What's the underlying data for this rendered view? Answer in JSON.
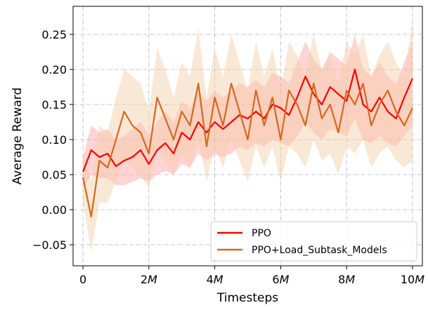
{
  "chart_data": {
    "type": "line",
    "xlabel": "Timesteps",
    "ylabel": "Average Reward",
    "xlim": [
      -0.3,
      10.3
    ],
    "ylim": [
      -0.08,
      0.29
    ],
    "x_unit": "M",
    "x_ticks": [
      0,
      2,
      4,
      6,
      8,
      10
    ],
    "x_tick_labels": [
      "0",
      "2",
      "4",
      "6",
      "8",
      "10"
    ],
    "y_ticks": [
      -0.05,
      0.0,
      0.05,
      0.1,
      0.15,
      0.2,
      0.25
    ],
    "y_tick_labels": [
      "−0.05",
      "0.00",
      "0.05",
      "0.10",
      "0.15",
      "0.20",
      "0.25"
    ],
    "grid": true,
    "legend_position": "bottom-right",
    "series": [
      {
        "name": "PPO",
        "color": "#ff0000",
        "band_color": "#ff9f9f",
        "x": [
          0,
          0.25,
          0.5,
          0.75,
          1,
          1.25,
          1.5,
          1.75,
          2,
          2.25,
          2.5,
          2.75,
          3,
          3.25,
          3.5,
          3.75,
          4,
          4.25,
          4.5,
          4.75,
          5,
          5.25,
          5.5,
          5.75,
          6,
          6.25,
          6.5,
          6.75,
          7,
          7.25,
          7.5,
          7.75,
          8,
          8.25,
          8.5,
          8.75,
          9,
          9.25,
          9.5,
          9.75,
          10
        ],
        "y": [
          0.054,
          0.085,
          0.075,
          0.08,
          0.062,
          0.07,
          0.075,
          0.085,
          0.065,
          0.085,
          0.095,
          0.08,
          0.11,
          0.1,
          0.125,
          0.11,
          0.125,
          0.115,
          0.125,
          0.135,
          0.13,
          0.14,
          0.13,
          0.15,
          0.145,
          0.135,
          0.16,
          0.19,
          0.165,
          0.15,
          0.175,
          0.165,
          0.155,
          0.2,
          0.15,
          0.14,
          0.16,
          0.14,
          0.13,
          0.16,
          0.187
        ],
        "y_low": [
          0.03,
          0.05,
          0.045,
          0.045,
          0.035,
          0.035,
          0.04,
          0.045,
          0.04,
          0.05,
          0.055,
          0.05,
          0.065,
          0.06,
          0.08,
          0.07,
          0.08,
          0.075,
          0.08,
          0.09,
          0.085,
          0.095,
          0.09,
          0.1,
          0.095,
          0.09,
          0.105,
          0.125,
          0.11,
          0.1,
          0.115,
          0.11,
          0.105,
          0.13,
          0.1,
          0.095,
          0.105,
          0.095,
          0.09,
          0.105,
          0.12
        ],
        "y_high": [
          0.075,
          0.12,
          0.11,
          0.115,
          0.1,
          0.105,
          0.115,
          0.125,
          0.105,
          0.125,
          0.14,
          0.125,
          0.155,
          0.145,
          0.17,
          0.155,
          0.17,
          0.16,
          0.17,
          0.18,
          0.175,
          0.185,
          0.175,
          0.195,
          0.19,
          0.18,
          0.21,
          0.24,
          0.215,
          0.2,
          0.225,
          0.215,
          0.205,
          0.25,
          0.2,
          0.19,
          0.21,
          0.19,
          0.18,
          0.21,
          0.24
        ]
      },
      {
        "name": "PPO+Load_Subtask_Models",
        "color": "#d2691e",
        "band_color": "#f5cba7",
        "x": [
          0,
          0.25,
          0.5,
          0.75,
          1,
          1.25,
          1.5,
          1.75,
          2,
          2.25,
          2.5,
          2.75,
          3,
          3.25,
          3.5,
          3.75,
          4,
          4.25,
          4.5,
          4.75,
          5,
          5.25,
          5.5,
          5.75,
          6,
          6.25,
          6.5,
          6.75,
          7,
          7.25,
          7.5,
          7.75,
          8,
          8.25,
          8.5,
          8.75,
          9,
          9.25,
          9.5,
          9.75,
          10
        ],
        "y": [
          0.046,
          -0.01,
          0.07,
          0.06,
          0.1,
          0.14,
          0.12,
          0.11,
          0.08,
          0.16,
          0.13,
          0.1,
          0.14,
          0.12,
          0.18,
          0.09,
          0.16,
          0.12,
          0.18,
          0.14,
          0.1,
          0.17,
          0.12,
          0.16,
          0.1,
          0.17,
          0.15,
          0.12,
          0.18,
          0.13,
          0.15,
          0.11,
          0.17,
          0.15,
          0.18,
          0.12,
          0.15,
          0.17,
          0.14,
          0.12,
          0.145
        ],
        "y_low": [
          0.01,
          -0.06,
          0.01,
          0.01,
          0.04,
          0.07,
          0.06,
          0.05,
          0.03,
          0.09,
          0.07,
          0.05,
          0.08,
          0.06,
          0.1,
          0.04,
          0.09,
          0.06,
          0.1,
          0.07,
          0.04,
          0.09,
          0.06,
          0.09,
          0.04,
          0.09,
          0.08,
          0.06,
          0.1,
          0.07,
          0.08,
          0.05,
          0.09,
          0.08,
          0.1,
          0.06,
          0.08,
          0.09,
          0.07,
          0.06,
          0.07
        ],
        "y_high": [
          0.08,
          0.04,
          0.12,
          0.11,
          0.16,
          0.2,
          0.19,
          0.18,
          0.14,
          0.23,
          0.2,
          0.16,
          0.21,
          0.19,
          0.26,
          0.16,
          0.23,
          0.19,
          0.25,
          0.21,
          0.17,
          0.24,
          0.19,
          0.23,
          0.17,
          0.24,
          0.22,
          0.19,
          0.25,
          0.2,
          0.22,
          0.18,
          0.24,
          0.22,
          0.25,
          0.19,
          0.22,
          0.24,
          0.21,
          0.19,
          0.27
        ]
      }
    ]
  }
}
